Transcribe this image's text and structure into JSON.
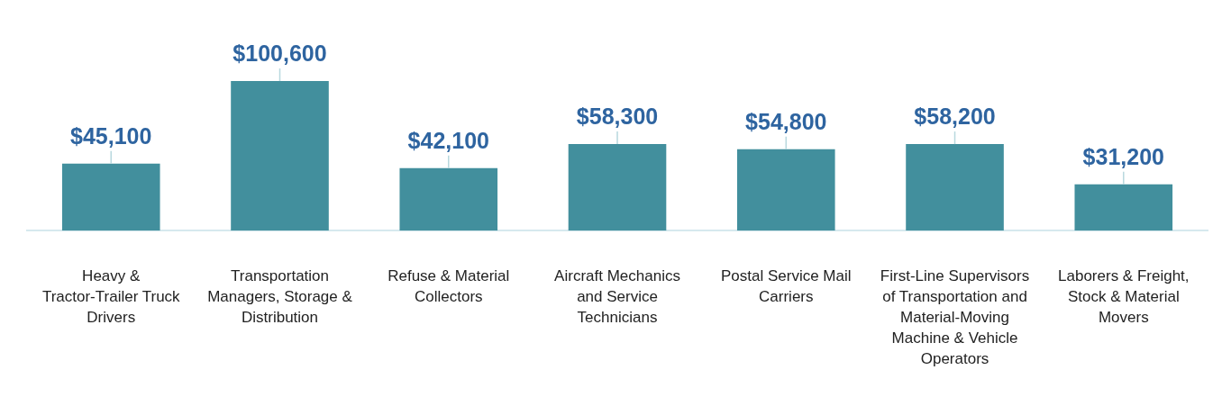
{
  "chart_data": {
    "type": "bar",
    "categories": [
      "Heavy & Tractor-Trailer Truck Drivers",
      "Transportation Managers, Storage & Distribution",
      "Refuse & Material Collectors",
      "Aircraft Mechanics and Service Technicians",
      "Postal Service Mail Carriers",
      "First-Line Supervisors of Transportation and Material-Moving Machine & Vehicle Operators",
      "Laborers & Freight, Stock & Material Movers"
    ],
    "values": [
      45100,
      100600,
      42100,
      58300,
      54800,
      58200,
      31200
    ],
    "value_labels": [
      "$45,100",
      "$100,600",
      "$42,100",
      "$58,300",
      "$54,800",
      "$58,200",
      "$31,200"
    ],
    "color": "#428f9d",
    "grid": false,
    "legend": false
  }
}
